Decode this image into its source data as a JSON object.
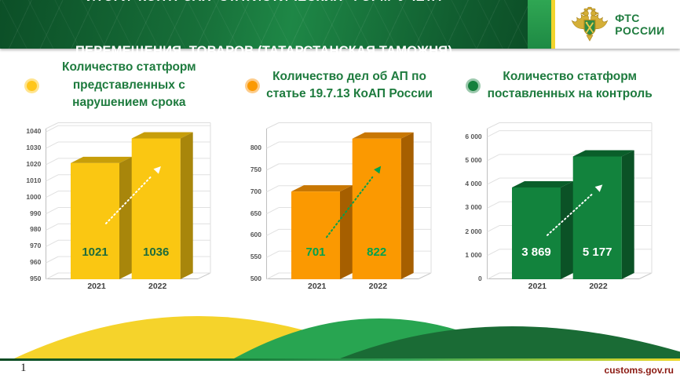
{
  "header": {
    "title_line1": "ИТОГИ  КОНТРОЛЯ  СТАТИСТИЧЕСКИХ  ФОРМ  УЧЕТА",
    "title_line2": "ПЕРЕМЕЩЕНИЯ  ТОВАРОВ (ТАТАРСТАНСКАЯ ТАМОЖНЯ)",
    "logo_line1": "ФТС",
    "logo_line2": "РОССИИ"
  },
  "footer": {
    "page_number": "1",
    "site": "customs.gov.ru"
  },
  "chart_data": [
    {
      "type": "bar",
      "title": "Количество статформ представленных с нарушением срока",
      "categories": [
        "2021",
        "2022"
      ],
      "values": [
        1021,
        1036
      ],
      "value_labels": [
        "1021",
        "1036"
      ],
      "ylim": [
        950,
        1040
      ],
      "ytick_values": [
        1040,
        1030,
        1020,
        1010,
        1000,
        990,
        980,
        970,
        960,
        950
      ],
      "ytick_labels": [
        "1040",
        "1030",
        "1020",
        "1010",
        "1000",
        "990",
        "980",
        "970",
        "960",
        "950"
      ],
      "grid": true,
      "legend_position": "none",
      "colors": {
        "front": "#FAC712",
        "top": "#C79E0A",
        "side": "#A8860B",
        "value": "#1E6B3C",
        "arrow": "#FFFFFF",
        "bullet": "#FFC61B",
        "bullet_ring": "#FFE48F"
      }
    },
    {
      "type": "bar",
      "title": "Количество дел об АП по статье 19.7.13 КоАП России",
      "categories": [
        "2021",
        "2022"
      ],
      "values": [
        701,
        822
      ],
      "value_labels": [
        "701",
        "822"
      ],
      "ylim": [
        500,
        800
      ],
      "ytick_values": [
        800,
        750,
        700,
        650,
        600,
        550,
        500
      ],
      "ytick_labels": [
        "800",
        "750",
        "700",
        "650",
        "600",
        "550",
        "500"
      ],
      "grid": true,
      "legend_position": "none",
      "colors": {
        "front": "#FB9901",
        "top": "#C87703",
        "side": "#A65F00",
        "value": "#00A14E",
        "arrow": "#00A14E",
        "bullet": "#FB9901",
        "bullet_ring": "#FDCC8A"
      }
    },
    {
      "type": "bar",
      "title": "Количество статформ поставленных на контроль",
      "categories": [
        "2021",
        "2022"
      ],
      "values": [
        3869,
        5177
      ],
      "value_labels": [
        "3 869",
        "5 177"
      ],
      "ylim": [
        0,
        6000
      ],
      "ytick_values": [
        6000,
        5000,
        4000,
        3000,
        2000,
        1000,
        0
      ],
      "ytick_labels": [
        "6 000",
        "5 000",
        "4 000",
        "3 000",
        "2 000",
        "1 000",
        "0"
      ],
      "grid": true,
      "legend_position": "none",
      "colors": {
        "front": "#12833D",
        "top": "#0A5E2A",
        "side": "#0B5226",
        "value": "#FFFFFF",
        "arrow": "#FFFFFF",
        "bullet": "#15803C",
        "bullet_ring": "#9CC9AD"
      }
    }
  ]
}
